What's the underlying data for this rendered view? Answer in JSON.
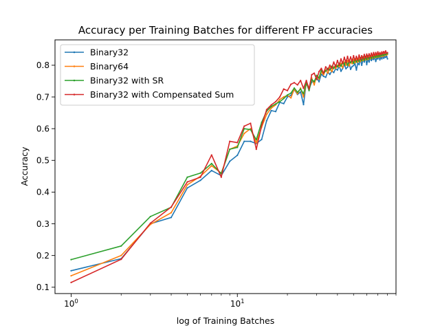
{
  "chart_data": {
    "type": "line",
    "title": "Accuracy per Training Batches for different FP accuracies",
    "xlabel": "log of Training Batches",
    "ylabel": "Accuracy",
    "xscale": "log",
    "xlim": [
      0.8,
      90
    ],
    "ylim": [
      0.08,
      0.88
    ],
    "xticks": [
      {
        "value": 1,
        "base": "10",
        "exp": "0"
      },
      {
        "value": 10,
        "base": "10",
        "exp": "1"
      }
    ],
    "yticks": [
      0.1,
      0.2,
      0.3,
      0.4,
      0.5,
      0.6,
      0.7,
      0.8
    ],
    "ytick_labels": [
      "0.1",
      "0.2",
      "0.3",
      "0.4",
      "0.5",
      "0.6",
      "0.7",
      "0.8"
    ],
    "grid": false,
    "legend_position": "upper-left",
    "series": [
      {
        "name": "Binary32",
        "color": "#1f77b4",
        "x": [
          1,
          2,
          3,
          4,
          5,
          6,
          7,
          8,
          9,
          10,
          11,
          12,
          13,
          14,
          15,
          16,
          17,
          18,
          19,
          20,
          21,
          22,
          23,
          24,
          25,
          26,
          27,
          28,
          29,
          30,
          31,
          32,
          33,
          34,
          35,
          36,
          37,
          38,
          39,
          40,
          41,
          42,
          43,
          44,
          45,
          46,
          47,
          48,
          49,
          50,
          51,
          52,
          53,
          54,
          55,
          56,
          57,
          58,
          59,
          60,
          61,
          62,
          63,
          64,
          65,
          66,
          67,
          68,
          69,
          70,
          71,
          72,
          73,
          74,
          75,
          76,
          77,
          78,
          79,
          80
        ],
        "y": [
          0.152,
          0.19,
          0.3,
          0.32,
          0.413,
          0.437,
          0.468,
          0.452,
          0.497,
          0.516,
          0.56,
          0.56,
          0.553,
          0.566,
          0.625,
          0.657,
          0.654,
          0.683,
          0.679,
          0.7,
          0.705,
          0.723,
          0.708,
          0.716,
          0.676,
          0.748,
          0.726,
          0.747,
          0.75,
          0.76,
          0.748,
          0.772,
          0.765,
          0.762,
          0.779,
          0.771,
          0.782,
          0.777,
          0.789,
          0.785,
          0.798,
          0.781,
          0.79,
          0.802,
          0.789,
          0.794,
          0.807,
          0.787,
          0.796,
          0.799,
          0.805,
          0.785,
          0.807,
          0.802,
          0.82,
          0.8,
          0.818,
          0.81,
          0.825,
          0.802,
          0.82,
          0.81,
          0.825,
          0.815,
          0.822,
          0.818,
          0.827,
          0.812,
          0.822,
          0.82,
          0.83,
          0.817,
          0.828,
          0.82,
          0.832,
          0.822,
          0.827,
          0.825,
          0.83,
          0.82
        ]
      },
      {
        "name": "Binary64",
        "color": "#ff7f0e",
        "x": [
          1,
          2,
          3,
          4,
          5,
          6,
          7,
          8,
          9,
          10,
          11,
          12,
          13,
          14,
          15,
          16,
          17,
          18,
          19,
          20,
          21,
          22,
          23,
          24,
          25,
          26,
          27,
          28,
          29,
          30,
          31,
          32,
          33,
          34,
          35,
          36,
          37,
          38,
          39,
          40,
          41,
          42,
          43,
          44,
          45,
          46,
          47,
          48,
          49,
          50,
          51,
          52,
          53,
          54,
          55,
          56,
          57,
          58,
          59,
          60,
          61,
          62,
          63,
          64,
          65,
          66,
          67,
          68,
          69,
          70,
          71,
          72,
          73,
          74,
          75,
          76,
          77,
          78,
          79,
          80
        ],
        "y": [
          0.136,
          0.2,
          0.298,
          0.335,
          0.423,
          0.45,
          0.483,
          0.46,
          0.535,
          0.545,
          0.585,
          0.6,
          0.555,
          0.605,
          0.645,
          0.665,
          0.675,
          0.692,
          0.7,
          0.705,
          0.697,
          0.725,
          0.71,
          0.728,
          0.7,
          0.742,
          0.727,
          0.76,
          0.738,
          0.768,
          0.756,
          0.78,
          0.77,
          0.785,
          0.775,
          0.792,
          0.78,
          0.795,
          0.79,
          0.8,
          0.795,
          0.806,
          0.792,
          0.81,
          0.8,
          0.815,
          0.798,
          0.812,
          0.805,
          0.818,
          0.808,
          0.82,
          0.81,
          0.822,
          0.812,
          0.825,
          0.815,
          0.826,
          0.817,
          0.828,
          0.818,
          0.826,
          0.82,
          0.83,
          0.822,
          0.832,
          0.824,
          0.833,
          0.825,
          0.834,
          0.826,
          0.835,
          0.827,
          0.836,
          0.828,
          0.835,
          0.83,
          0.836,
          0.832,
          0.835
        ]
      },
      {
        "name": "Binary32 with SR",
        "color": "#2ca02c",
        "x": [
          1,
          2,
          3,
          4,
          5,
          6,
          7,
          8,
          9,
          10,
          11,
          12,
          13,
          14,
          15,
          16,
          17,
          18,
          19,
          20,
          21,
          22,
          23,
          24,
          25,
          26,
          27,
          28,
          29,
          30,
          31,
          32,
          33,
          34,
          35,
          36,
          37,
          38,
          39,
          40,
          41,
          42,
          43,
          44,
          45,
          46,
          47,
          48,
          49,
          50,
          51,
          52,
          53,
          54,
          55,
          56,
          57,
          58,
          59,
          60,
          61,
          62,
          63,
          64,
          65,
          66,
          67,
          68,
          69,
          70,
          71,
          72,
          73,
          74,
          75,
          76,
          77,
          78,
          79,
          80
        ],
        "y": [
          0.187,
          0.23,
          0.323,
          0.352,
          0.447,
          0.46,
          0.49,
          0.458,
          0.535,
          0.541,
          0.6,
          0.597,
          0.565,
          0.62,
          0.655,
          0.67,
          0.678,
          0.685,
          0.695,
          0.706,
          0.712,
          0.728,
          0.715,
          0.725,
          0.71,
          0.745,
          0.72,
          0.755,
          0.748,
          0.768,
          0.76,
          0.785,
          0.775,
          0.782,
          0.79,
          0.785,
          0.797,
          0.79,
          0.8,
          0.795,
          0.806,
          0.797,
          0.81,
          0.802,
          0.815,
          0.8,
          0.812,
          0.808,
          0.818,
          0.806,
          0.82,
          0.81,
          0.82,
          0.812,
          0.824,
          0.814,
          0.826,
          0.816,
          0.828,
          0.818,
          0.83,
          0.82,
          0.828,
          0.822,
          0.83,
          0.824,
          0.832,
          0.825,
          0.834,
          0.826,
          0.834,
          0.828,
          0.835,
          0.83,
          0.836,
          0.831,
          0.836,
          0.833,
          0.837,
          0.836
        ]
      },
      {
        "name": "Binary32 with Compensated Sum",
        "color": "#d62728",
        "x": [
          1,
          2,
          3,
          4,
          5,
          6,
          7,
          8,
          9,
          10,
          11,
          12,
          13,
          14,
          15,
          16,
          17,
          18,
          19,
          20,
          21,
          22,
          23,
          24,
          25,
          26,
          27,
          28,
          29,
          30,
          31,
          32,
          33,
          34,
          35,
          36,
          37,
          38,
          39,
          40,
          41,
          42,
          43,
          44,
          45,
          46,
          47,
          48,
          49,
          50,
          51,
          52,
          53,
          54,
          55,
          56,
          57,
          58,
          59,
          60,
          61,
          62,
          63,
          64,
          65,
          66,
          67,
          68,
          69,
          70,
          71,
          72,
          73,
          74,
          75,
          76,
          77,
          78,
          79,
          80
        ],
        "y": [
          0.115,
          0.188,
          0.302,
          0.353,
          0.432,
          0.447,
          0.517,
          0.447,
          0.56,
          0.556,
          0.608,
          0.617,
          0.535,
          0.61,
          0.66,
          0.675,
          0.685,
          0.7,
          0.725,
          0.72,
          0.74,
          0.745,
          0.738,
          0.752,
          0.727,
          0.752,
          0.725,
          0.77,
          0.775,
          0.755,
          0.78,
          0.79,
          0.775,
          0.795,
          0.785,
          0.8,
          0.79,
          0.81,
          0.795,
          0.815,
          0.8,
          0.82,
          0.805,
          0.825,
          0.808,
          0.828,
          0.81,
          0.826,
          0.812,
          0.83,
          0.815,
          0.828,
          0.816,
          0.832,
          0.818,
          0.83,
          0.82,
          0.834,
          0.822,
          0.835,
          0.824,
          0.836,
          0.826,
          0.838,
          0.828,
          0.84,
          0.83,
          0.84,
          0.832,
          0.842,
          0.833,
          0.84,
          0.834,
          0.842,
          0.836,
          0.843,
          0.837,
          0.845,
          0.838,
          0.84
        ]
      }
    ]
  }
}
